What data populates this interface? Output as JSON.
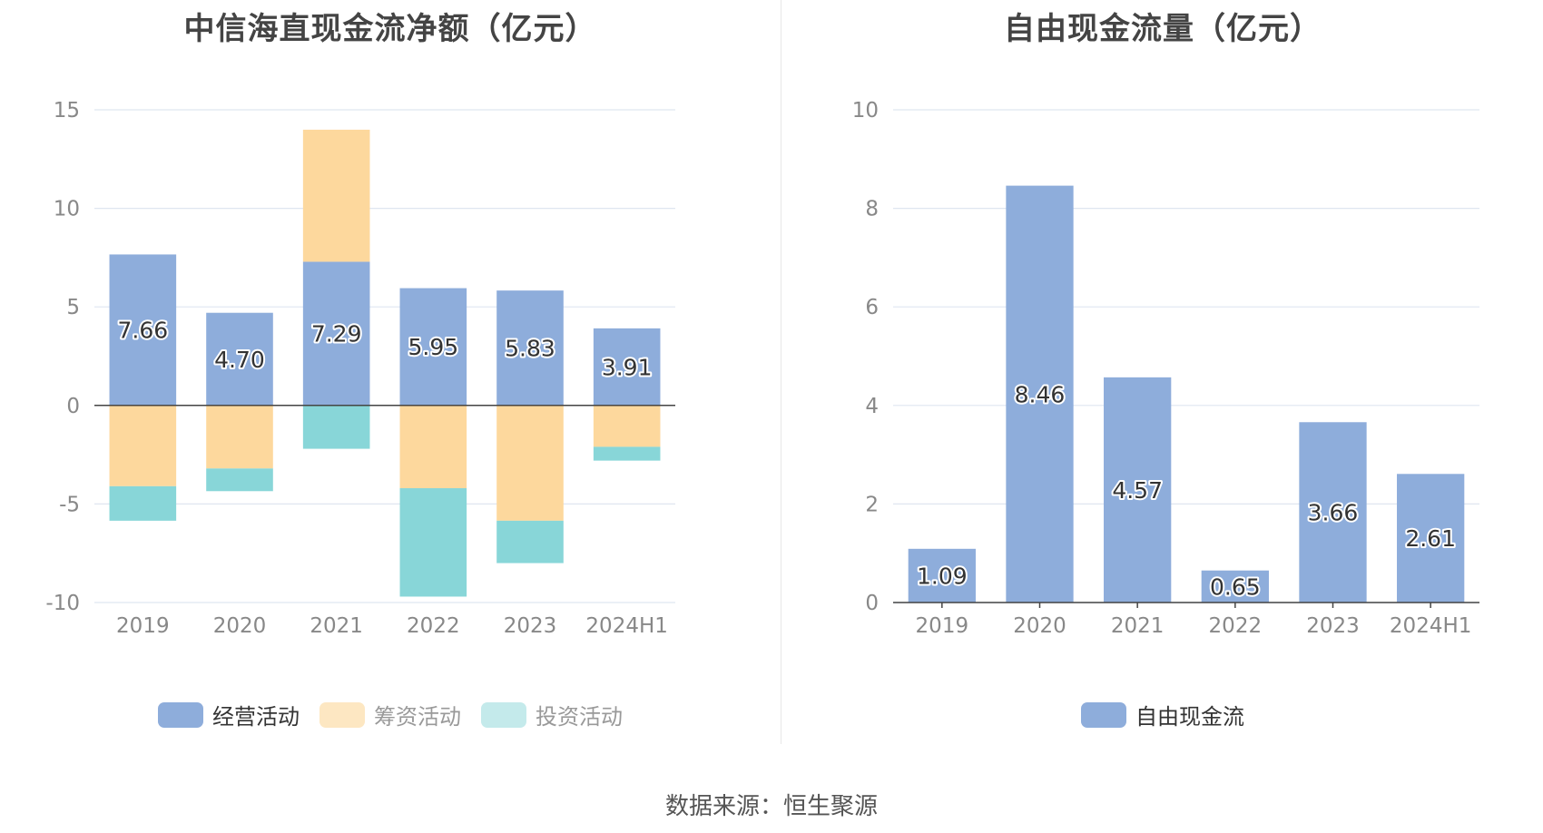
{
  "footer": {
    "source": "数据来源：恒生聚源"
  },
  "colors": {
    "operating": "#8eaddb",
    "financing": "#fdd89d",
    "investing": "#88d6d8",
    "free_cash_flow": "#8eaddb",
    "grid": "#dfe6f0",
    "axis": "#444444",
    "tick_text": "#888888"
  },
  "chart_data": [
    {
      "type": "bar",
      "stacked": true,
      "title": "中信海直现金流净额（亿元）",
      "categories": [
        "2019",
        "2020",
        "2021",
        "2022",
        "2023",
        "2024H1"
      ],
      "ylim": [
        -10,
        15
      ],
      "yticks": [
        "15",
        "10",
        "5",
        "0",
        "-5",
        "-10"
      ],
      "grid": true,
      "legend_position": "bottom",
      "series": [
        {
          "name": "经营活动",
          "values": [
            7.66,
            4.7,
            7.29,
            5.95,
            5.83,
            3.91
          ],
          "labels": [
            "7.66",
            "4.70",
            "7.29",
            "5.95",
            "5.83",
            "3.91"
          ]
        },
        {
          "name": "筹资活动",
          "values": [
            -4.1,
            -3.2,
            6.7,
            -4.2,
            -5.85,
            -2.1
          ]
        },
        {
          "name": "投资活动",
          "values": [
            -1.75,
            -1.15,
            -2.2,
            -5.5,
            -2.15,
            -0.7
          ]
        }
      ]
    },
    {
      "type": "bar",
      "title": "自由现金流量（亿元）",
      "categories": [
        "2019",
        "2020",
        "2021",
        "2022",
        "2023",
        "2024H1"
      ],
      "ylim": [
        0,
        10
      ],
      "yticks": [
        "10",
        "8",
        "6",
        "4",
        "2",
        "0"
      ],
      "grid": true,
      "legend_position": "bottom",
      "series": [
        {
          "name": "自由现金流",
          "values": [
            1.09,
            8.46,
            4.57,
            0.65,
            3.66,
            2.61
          ],
          "labels": [
            "1.09",
            "8.46",
            "4.57",
            "0.65",
            "3.66",
            "2.61"
          ]
        }
      ]
    }
  ]
}
